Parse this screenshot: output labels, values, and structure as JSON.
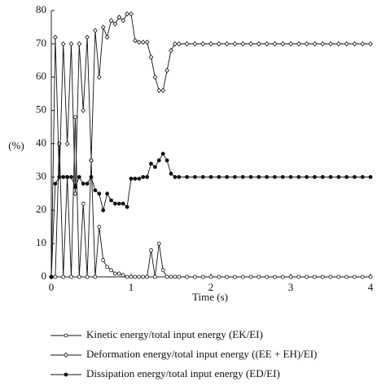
{
  "chart_data": {
    "type": "line",
    "xlabel": "Time (s)",
    "ylabel": "(%)",
    "x": [
      0,
      0.05,
      0.1,
      0.15,
      0.2,
      0.25,
      0.3,
      0.35,
      0.4,
      0.45,
      0.5,
      0.55,
      0.6,
      0.65,
      0.7,
      0.75,
      0.8,
      0.85,
      0.9,
      0.95,
      1.0,
      1.05,
      1.1,
      1.15,
      1.2,
      1.25,
      1.3,
      1.35,
      1.4,
      1.45,
      1.5,
      1.55,
      1.6,
      1.7,
      1.8,
      1.9,
      2.0,
      2.1,
      2.2,
      2.3,
      2.4,
      2.5,
      2.6,
      2.7,
      2.8,
      2.9,
      3.0,
      3.1,
      3.2,
      3.3,
      3.4,
      3.5,
      3.6,
      3.7,
      3.8,
      3.9,
      4.0
    ],
    "xlim": [
      0,
      4
    ],
    "xticks": [
      0,
      1,
      2,
      3,
      4
    ],
    "ylim": [
      0,
      80
    ],
    "yticks": [
      0,
      10,
      20,
      30,
      40,
      50,
      60,
      70,
      80
    ],
    "grid": false,
    "series": [
      {
        "name": "Kinetic energy/total input energy (EK/EI)",
        "color": "#111111",
        "marker": "circle-open",
        "values": [
          0,
          0,
          40,
          0,
          30,
          0,
          48,
          0,
          22,
          0,
          35,
          0,
          15,
          5,
          3,
          2,
          1,
          1,
          0.5,
          0,
          0,
          0,
          0,
          0,
          0,
          8,
          0,
          10,
          2,
          0,
          0,
          0,
          0,
          0,
          0,
          0,
          0,
          0,
          0,
          0,
          0,
          0,
          0,
          0,
          0,
          0,
          0,
          0,
          0,
          0,
          0,
          0,
          0,
          0,
          0,
          0,
          0
        ]
      },
      {
        "name": "Deformation energy/total input energy ((EE + EH)/EI)",
        "color": "#111111",
        "marker": "diamond-open",
        "values": [
          0,
          72,
          30,
          70,
          40,
          70,
          25,
          70,
          50,
          72,
          35,
          74,
          60,
          75,
          72,
          77,
          76,
          78,
          77,
          79,
          79,
          71,
          70.5,
          70.5,
          70.5,
          66,
          60,
          56,
          56,
          62,
          68,
          70,
          70,
          70,
          70,
          70,
          70,
          70,
          70,
          70,
          70,
          70,
          70,
          70,
          70,
          70,
          70,
          70,
          70,
          70,
          70,
          70,
          70,
          70,
          70,
          70,
          70
        ]
      },
      {
        "name": "Dissipation energy/total input energy (ED/EI)",
        "color": "#111111",
        "marker": "circle-filled",
        "values": [
          0,
          28,
          30,
          30,
          30,
          30,
          27,
          30,
          28,
          28,
          30,
          26,
          25,
          20,
          25,
          23,
          22,
          22,
          22,
          21,
          29.5,
          29.5,
          29.5,
          30,
          30,
          34,
          33,
          35,
          37,
          35,
          31,
          30,
          30,
          30,
          30,
          30,
          30,
          30,
          30,
          30,
          30,
          30,
          30,
          30,
          30,
          30,
          30,
          30,
          30,
          30,
          30,
          30,
          30,
          30,
          30,
          30,
          30
        ]
      }
    ]
  }
}
